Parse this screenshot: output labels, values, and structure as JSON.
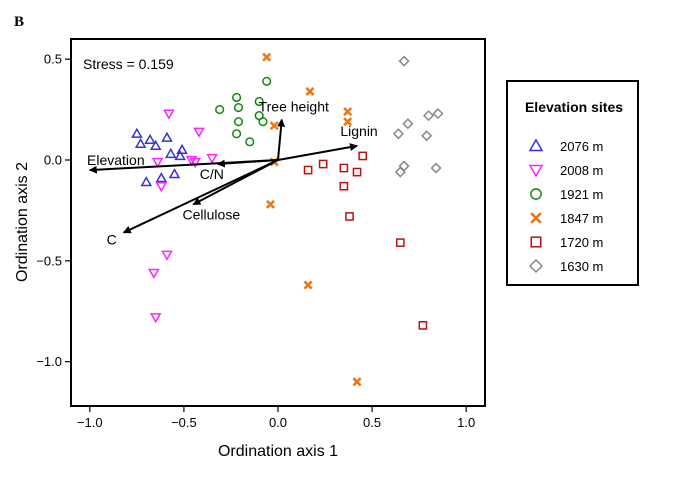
{
  "panel_label": "B",
  "chart_data": {
    "type": "scatter",
    "xlabel": "Ordination axis 1",
    "ylabel": "Ordination axis 2",
    "xlim": [
      -1.1,
      1.1
    ],
    "ylim": [
      -1.22,
      0.6
    ],
    "xticks": [
      -1.0,
      -0.5,
      0.0,
      0.5,
      1.0
    ],
    "xtick_labels": [
      "−1.0",
      "−0.5",
      "0.0",
      "0.5",
      "1.0"
    ],
    "yticks": [
      0.5,
      0.0,
      -0.5,
      -1.0
    ],
    "ytick_labels": [
      "0.5",
      "0.0",
      "−0.5",
      "−1.0"
    ],
    "annotation": "Stress = 0.159",
    "legend": {
      "title": "Elevation sites",
      "placement": "right"
    },
    "series": [
      {
        "name": "2076 m",
        "marker": "triangle-up",
        "color": "#3333dd",
        "points": [
          [
            -0.75,
            0.13
          ],
          [
            -0.73,
            0.08
          ],
          [
            -0.68,
            0.1
          ],
          [
            -0.65,
            0.07
          ],
          [
            -0.7,
            -0.11
          ],
          [
            -0.62,
            -0.09
          ],
          [
            -0.55,
            -0.07
          ],
          [
            -0.52,
            0.02
          ],
          [
            -0.57,
            0.03
          ],
          [
            -0.59,
            0.11
          ],
          [
            -0.51,
            0.05
          ]
        ]
      },
      {
        "name": "2008 m",
        "marker": "triangle-down",
        "color": "#ff22ff",
        "points": [
          [
            -0.58,
            0.23
          ],
          [
            -0.42,
            0.14
          ],
          [
            -0.46,
            0.0
          ],
          [
            -0.44,
            -0.01
          ],
          [
            -0.35,
            0.01
          ],
          [
            -0.62,
            -0.13
          ],
          [
            -0.66,
            -0.56
          ],
          [
            -0.59,
            -0.47
          ],
          [
            -0.65,
            -0.78
          ],
          [
            -0.64,
            -0.01
          ]
        ]
      },
      {
        "name": "1921 m",
        "marker": "circle",
        "color": "#118811",
        "points": [
          [
            -0.06,
            0.39
          ],
          [
            -0.1,
            0.29
          ],
          [
            -0.22,
            0.31
          ],
          [
            -0.21,
            0.26
          ],
          [
            -0.31,
            0.25
          ],
          [
            -0.1,
            0.22
          ],
          [
            -0.21,
            0.19
          ],
          [
            -0.08,
            0.19
          ],
          [
            -0.22,
            0.13
          ],
          [
            -0.15,
            0.09
          ]
        ]
      },
      {
        "name": "1847 m",
        "marker": "x",
        "color": "#ee7711",
        "points": [
          [
            -0.06,
            0.51
          ],
          [
            0.17,
            0.34
          ],
          [
            0.37,
            0.24
          ],
          [
            0.37,
            0.19
          ],
          [
            -0.02,
            0.17
          ],
          [
            -0.02,
            -0.01
          ],
          [
            -0.04,
            -0.22
          ],
          [
            0.16,
            -0.62
          ],
          [
            0.42,
            -1.1
          ]
        ]
      },
      {
        "name": "1720 m",
        "marker": "square",
        "color": "#bb1111",
        "points": [
          [
            0.45,
            0.02
          ],
          [
            0.24,
            -0.02
          ],
          [
            0.16,
            -0.05
          ],
          [
            0.35,
            -0.04
          ],
          [
            0.42,
            -0.06
          ],
          [
            0.35,
            -0.13
          ],
          [
            0.38,
            -0.28
          ],
          [
            0.65,
            -0.41
          ],
          [
            0.77,
            -0.82
          ]
        ]
      },
      {
        "name": "1630 m",
        "marker": "diamond",
        "color": "#888888",
        "points": [
          [
            0.67,
            0.49
          ],
          [
            0.8,
            0.22
          ],
          [
            0.85,
            0.23
          ],
          [
            0.69,
            0.18
          ],
          [
            0.64,
            0.13
          ],
          [
            0.79,
            0.12
          ],
          [
            0.67,
            -0.03
          ],
          [
            0.65,
            -0.06
          ],
          [
            0.84,
            -0.04
          ]
        ]
      }
    ],
    "vectors": [
      {
        "name": "Tree height",
        "x": 0.02,
        "y": 0.2
      },
      {
        "name": "Lignin",
        "x": 0.42,
        "y": 0.07
      },
      {
        "name": "Elevation",
        "x": -1.0,
        "y": -0.05
      },
      {
        "name": "C/N",
        "x": -0.32,
        "y": -0.02
      },
      {
        "name": "Cellulose",
        "x": -0.45,
        "y": -0.22
      },
      {
        "name": "C",
        "x": -0.82,
        "y": -0.36
      }
    ]
  }
}
